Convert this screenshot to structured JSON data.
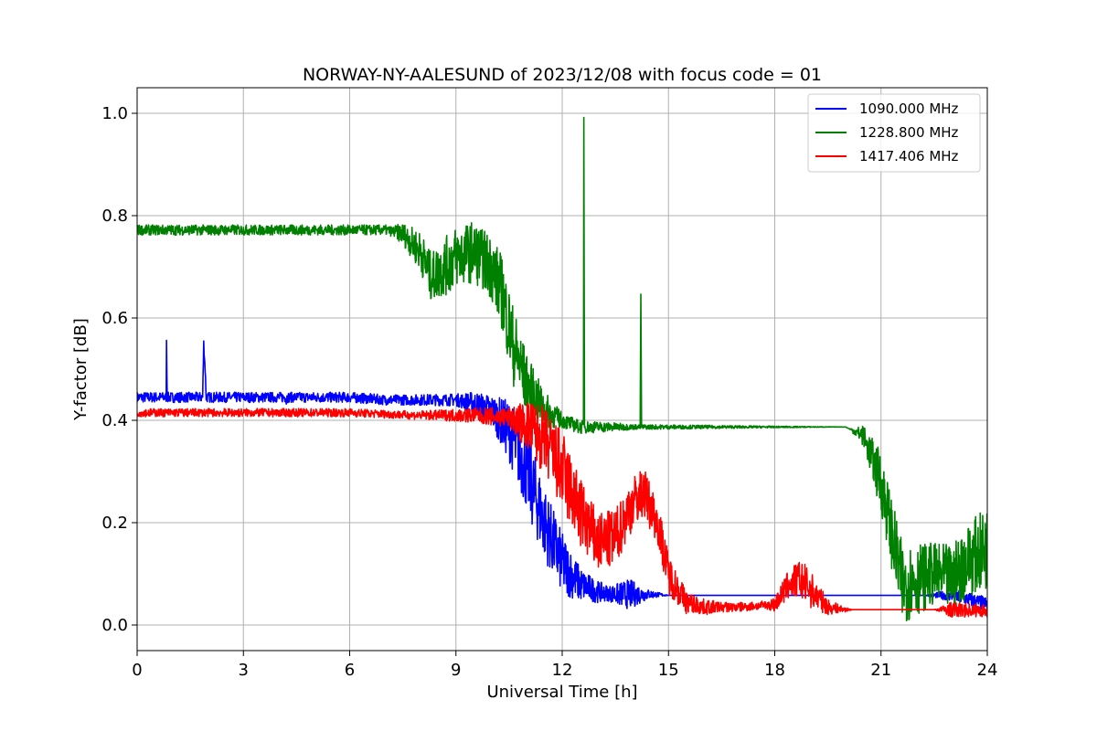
{
  "chart_data": {
    "type": "line",
    "title": "NORWAY-NY-AALESUND of 2023/12/08 with focus code = 01",
    "xlabel": "Universal Time [h]",
    "ylabel": "Y-factor [dB]",
    "xlim": [
      0,
      24
    ],
    "ylim": [
      -0.05,
      1.05
    ],
    "xticks": [
      0,
      3,
      6,
      9,
      12,
      15,
      18,
      21,
      24
    ],
    "yticks": [
      0.0,
      0.2,
      0.4,
      0.6,
      0.8,
      1.0
    ],
    "ytick_labels": [
      "0.0",
      "0.2",
      "0.4",
      "0.6",
      "0.8",
      "1.0"
    ],
    "grid": true,
    "legend_position": "top-right",
    "series": [
      {
        "name": "1090.000 MHz",
        "color": "#0000ff",
        "points": [
          [
            0,
            0.445
          ],
          [
            0.82,
            0.445
          ],
          [
            0.83,
            0.55
          ],
          [
            0.85,
            0.445
          ],
          [
            1.85,
            0.445
          ],
          [
            1.88,
            0.55
          ],
          [
            1.92,
            0.5
          ],
          [
            1.95,
            0.445
          ],
          [
            4.2,
            0.445
          ],
          [
            4.21,
            0.435
          ],
          [
            4.23,
            0.445
          ],
          [
            6.0,
            0.445
          ],
          [
            7.0,
            0.44
          ],
          [
            8.0,
            0.44
          ],
          [
            9.0,
            0.44
          ],
          [
            9.5,
            0.435
          ],
          [
            10.0,
            0.42
          ],
          [
            10.5,
            0.38
          ],
          [
            11.0,
            0.3
          ],
          [
            11.5,
            0.2
          ],
          [
            12.0,
            0.12
          ],
          [
            12.5,
            0.08
          ],
          [
            13.0,
            0.065
          ],
          [
            13.5,
            0.06
          ],
          [
            14.0,
            0.06
          ],
          [
            14.5,
            0.06
          ],
          [
            15.0,
            0.058
          ],
          [
            15.5,
            0.058
          ],
          [
            16.0,
            0.058
          ],
          [
            18.0,
            0.058
          ],
          [
            20.0,
            0.058
          ],
          [
            21.0,
            0.058
          ],
          [
            22.0,
            0.058
          ],
          [
            23.0,
            0.058
          ],
          [
            23.5,
            0.05
          ],
          [
            24.0,
            0.04
          ]
        ],
        "noise": [
          [
            7.4,
            0.01
          ],
          [
            9.0,
            0.012
          ],
          [
            10.0,
            0.03
          ],
          [
            10.5,
            0.06
          ],
          [
            11.2,
            0.08
          ],
          [
            12.0,
            0.06
          ],
          [
            12.6,
            0.03
          ],
          [
            13.3,
            0.015
          ],
          [
            13.9,
            0.03
          ],
          [
            14.4,
            0.01
          ],
          [
            15.0,
            0.0
          ],
          [
            22.2,
            0.0
          ],
          [
            23.0,
            0.012
          ],
          [
            24.0,
            0.015
          ]
        ]
      },
      {
        "name": "1228.800 MHz",
        "color": "#008000",
        "points": [
          [
            0,
            0.772
          ],
          [
            6.0,
            0.772
          ],
          [
            7.0,
            0.772
          ],
          [
            7.5,
            0.765
          ],
          [
            8.0,
            0.73
          ],
          [
            8.3,
            0.68
          ],
          [
            8.7,
            0.7
          ],
          [
            9.0,
            0.72
          ],
          [
            9.5,
            0.73
          ],
          [
            10.0,
            0.7
          ],
          [
            10.3,
            0.65
          ],
          [
            10.6,
            0.55
          ],
          [
            11.0,
            0.47
          ],
          [
            11.5,
            0.42
          ],
          [
            12.0,
            0.4
          ],
          [
            12.5,
            0.387
          ],
          [
            12.6,
            0.387
          ],
          [
            12.61,
            0.995
          ],
          [
            12.63,
            0.387
          ],
          [
            14.2,
            0.387
          ],
          [
            14.22,
            0.645
          ],
          [
            14.24,
            0.387
          ],
          [
            17.0,
            0.387
          ],
          [
            20.0,
            0.387
          ],
          [
            20.5,
            0.37
          ],
          [
            21.0,
            0.28
          ],
          [
            21.3,
            0.18
          ],
          [
            21.6,
            0.08
          ],
          [
            22.0,
            0.09
          ],
          [
            22.5,
            0.1
          ],
          [
            23.0,
            0.09
          ],
          [
            23.5,
            0.13
          ],
          [
            24.0,
            0.15
          ]
        ],
        "noise": [
          [
            7.2,
            0.01
          ],
          [
            8.0,
            0.04
          ],
          [
            8.8,
            0.06
          ],
          [
            9.8,
            0.06
          ],
          [
            10.6,
            0.08
          ],
          [
            11.2,
            0.05
          ],
          [
            12.0,
            0.015
          ],
          [
            13.2,
            0.01
          ],
          [
            14.0,
            0.005
          ],
          [
            20.1,
            0.0
          ],
          [
            20.5,
            0.02
          ],
          [
            21.0,
            0.06
          ],
          [
            21.6,
            0.08
          ],
          [
            22.5,
            0.06
          ],
          [
            23.3,
            0.07
          ],
          [
            24.0,
            0.08
          ]
        ]
      },
      {
        "name": "1417.406 MHz",
        "color": "#ff0000",
        "points": [
          [
            0,
            0.415
          ],
          [
            1.7,
            0.415
          ],
          [
            1.72,
            0.423
          ],
          [
            1.74,
            0.415
          ],
          [
            6.0,
            0.415
          ],
          [
            7.8,
            0.41
          ],
          [
            8.5,
            0.41
          ],
          [
            9.5,
            0.41
          ],
          [
            10.5,
            0.405
          ],
          [
            11.0,
            0.39
          ],
          [
            11.5,
            0.36
          ],
          [
            12.0,
            0.3
          ],
          [
            12.5,
            0.22
          ],
          [
            13.0,
            0.16
          ],
          [
            13.5,
            0.17
          ],
          [
            14.0,
            0.24
          ],
          [
            14.3,
            0.26
          ],
          [
            14.7,
            0.2
          ],
          [
            15.0,
            0.1
          ],
          [
            15.5,
            0.045
          ],
          [
            16.0,
            0.035
          ],
          [
            17.0,
            0.035
          ],
          [
            18.0,
            0.04
          ],
          [
            18.4,
            0.08
          ],
          [
            18.7,
            0.09
          ],
          [
            19.0,
            0.07
          ],
          [
            19.5,
            0.035
          ],
          [
            20.0,
            0.03
          ],
          [
            21.0,
            0.03
          ],
          [
            22.0,
            0.03
          ],
          [
            23.0,
            0.03
          ],
          [
            24.0,
            0.028
          ]
        ],
        "noise": [
          [
            7.8,
            0.008
          ],
          [
            8.5,
            0.01
          ],
          [
            10.5,
            0.02
          ],
          [
            11.2,
            0.06
          ],
          [
            12.0,
            0.08
          ],
          [
            13.0,
            0.06
          ],
          [
            14.2,
            0.05
          ],
          [
            15.0,
            0.04
          ],
          [
            15.6,
            0.02
          ],
          [
            16.5,
            0.01
          ],
          [
            17.8,
            0.008
          ],
          [
            18.4,
            0.03
          ],
          [
            18.9,
            0.04
          ],
          [
            19.5,
            0.015
          ],
          [
            20.2,
            0.0
          ],
          [
            22.5,
            0.0
          ],
          [
            23.0,
            0.015
          ],
          [
            24.0,
            0.012
          ]
        ]
      }
    ]
  }
}
